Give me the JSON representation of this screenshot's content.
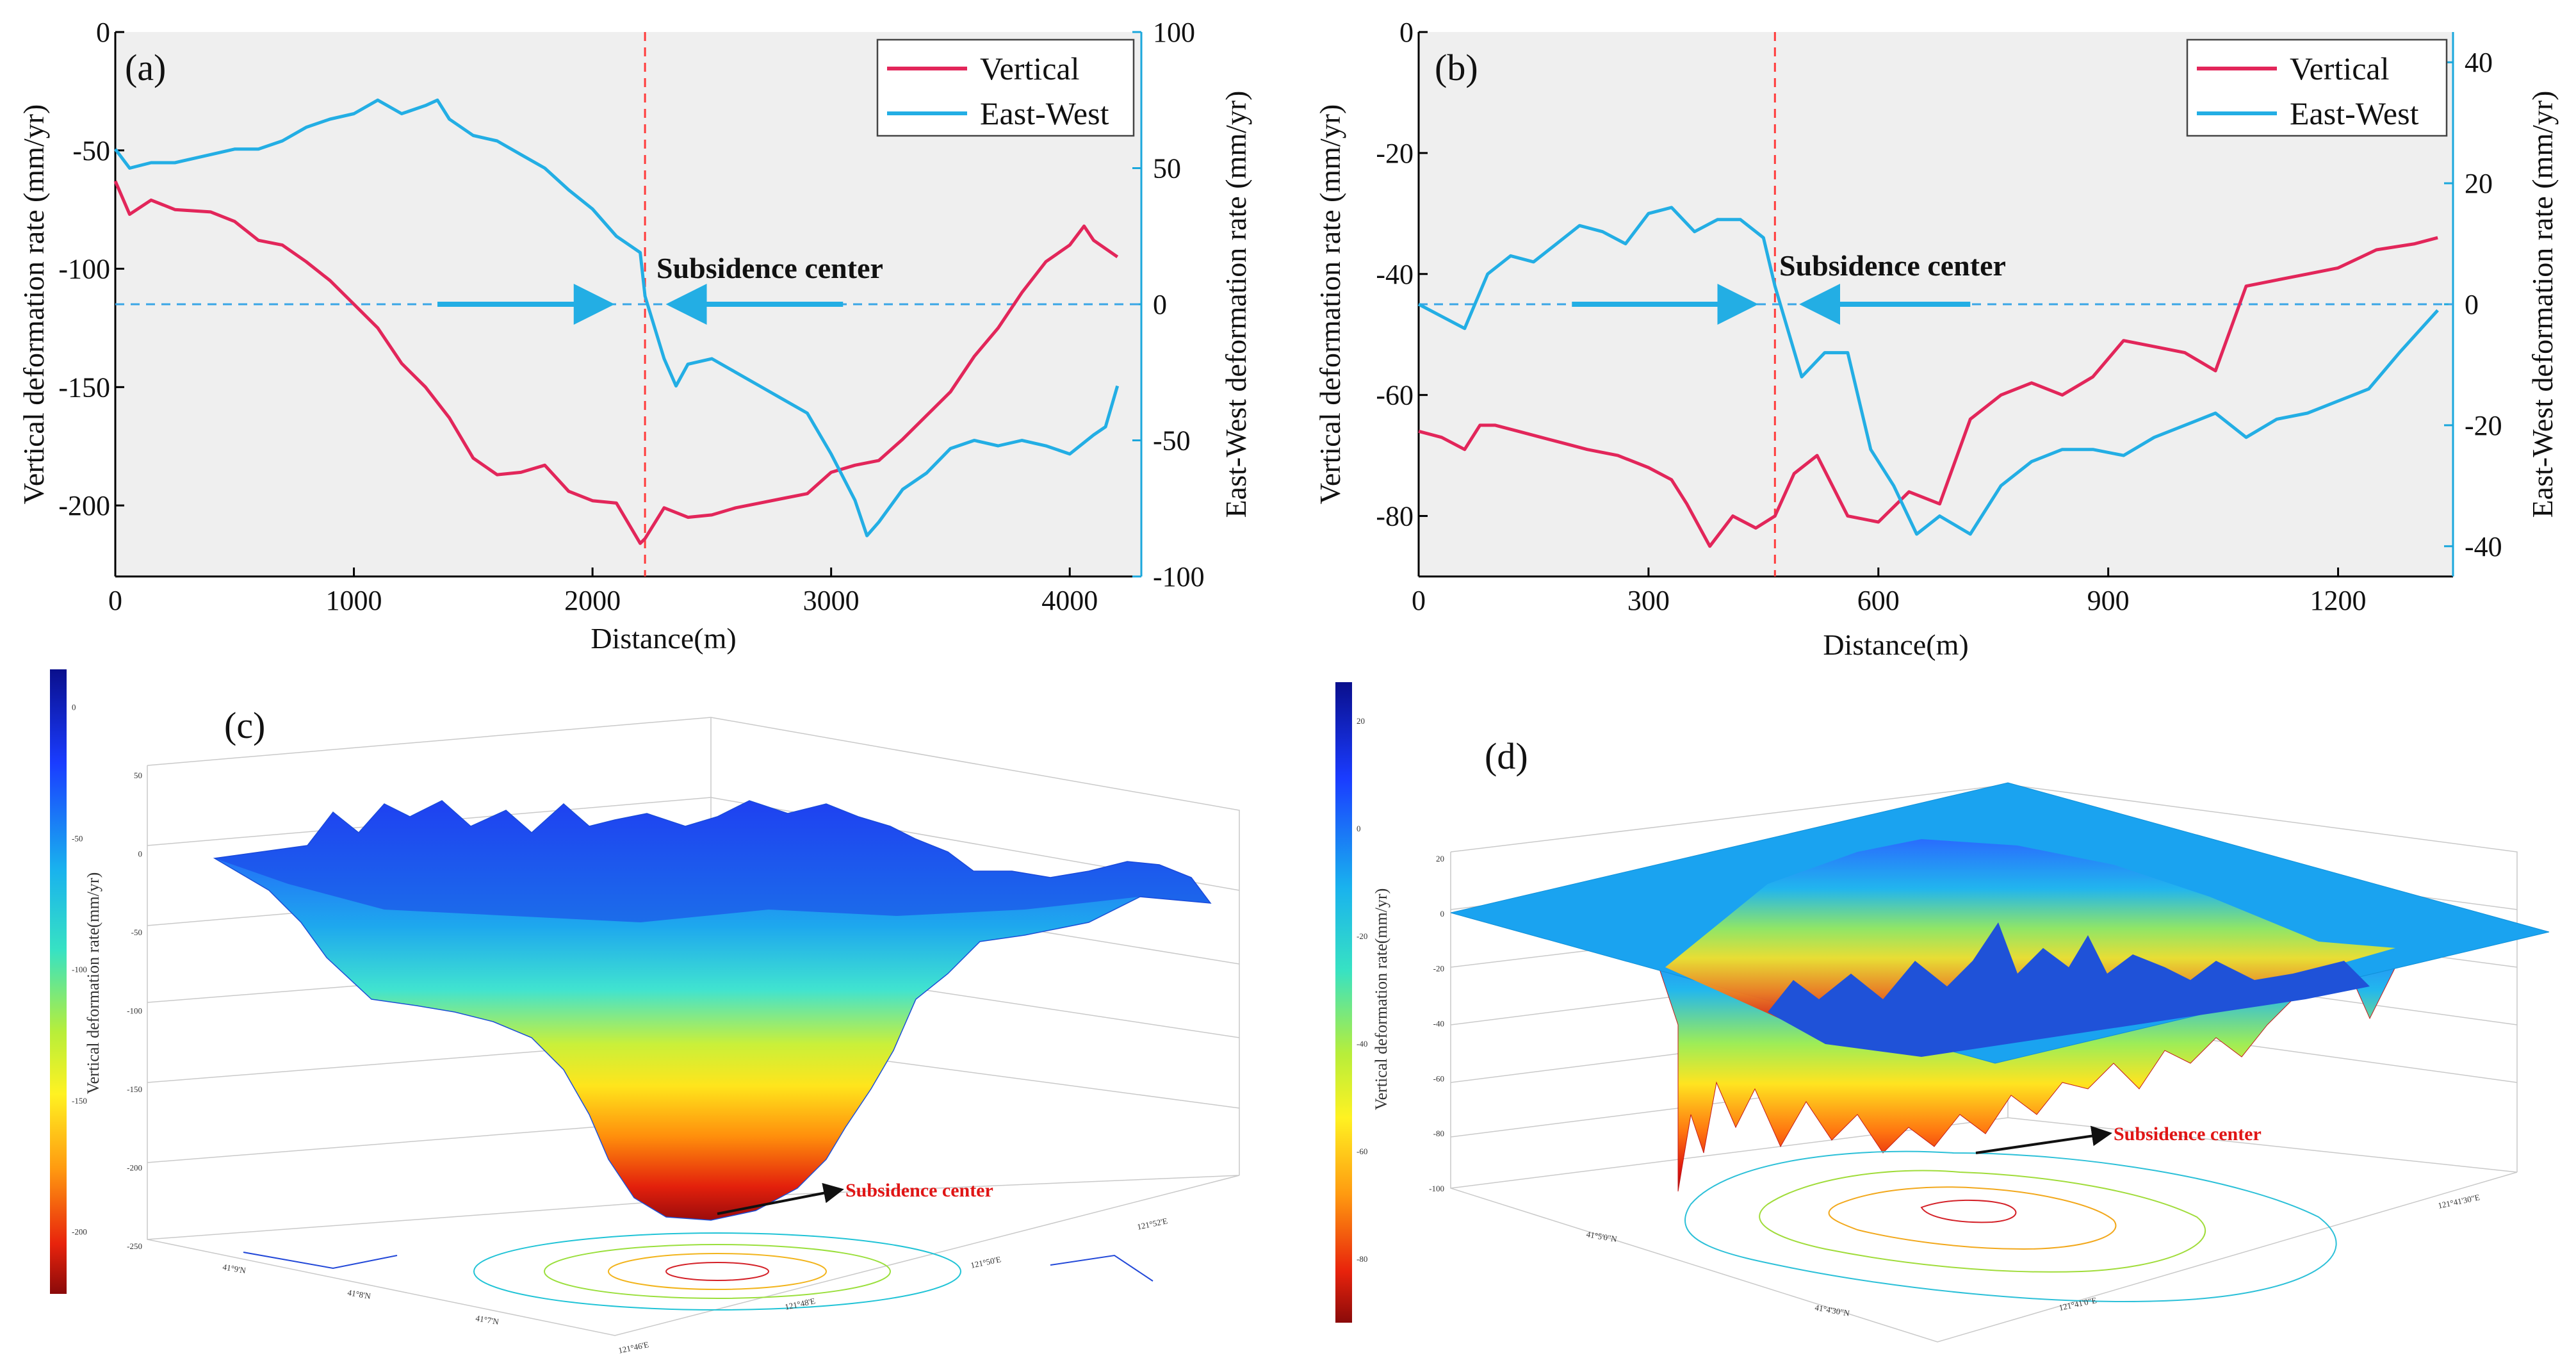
{
  "chart_data": [
    {
      "panel": "(a)",
      "type": "line",
      "xlabel": "Distance(m)",
      "ylabel_left": "Vertical deformation rate (mm/yr)",
      "ylabel_right": "East-West deformation rate (mm/yr)",
      "xlim": [
        0,
        4300
      ],
      "ylim_left": [
        -230,
        0
      ],
      "ylim_right": [
        -100,
        100
      ],
      "xticks": [
        0,
        1000,
        2000,
        3000,
        4000
      ],
      "yticks_left": [
        0,
        -50,
        -100,
        -150,
        -200
      ],
      "yticks_right": [
        100,
        50,
        0,
        -50,
        -100
      ],
      "annotation": "Subsidence center",
      "center_x": 2220,
      "zero_line_right": 0,
      "arrow_left": [
        1350,
        2050
      ],
      "arrow_right": [
        3050,
        2350
      ],
      "legend": [
        "Vertical",
        "East-West"
      ],
      "series": [
        {
          "name": "Vertical",
          "axis": "left",
          "color": "#e2265a",
          "x": [
            0,
            60,
            150,
            250,
            400,
            500,
            600,
            700,
            800,
            900,
            1000,
            1100,
            1200,
            1300,
            1400,
            1500,
            1600,
            1700,
            1800,
            1900,
            2000,
            2100,
            2200,
            2220,
            2300,
            2400,
            2500,
            2600,
            2700,
            2800,
            2900,
            3000,
            3100,
            3200,
            3300,
            3400,
            3500,
            3600,
            3700,
            3800,
            3900,
            4000,
            4060,
            4100,
            4200
          ],
          "values": [
            -63,
            -77,
            -71,
            -75,
            -76,
            -80,
            -88,
            -90,
            -97,
            -105,
            -115,
            -125,
            -140,
            -150,
            -163,
            -180,
            -187,
            -186,
            -183,
            -194,
            -198,
            -199,
            -216,
            -214,
            -201,
            -205,
            -204,
            -201,
            -199,
            -197,
            -195,
            -186,
            -183,
            -181,
            -172,
            -162,
            -152,
            -137,
            -125,
            -110,
            -97,
            -90,
            -82,
            -88,
            -95
          ]
        },
        {
          "name": "East-West",
          "axis": "right",
          "color": "#23aee4",
          "x": [
            0,
            60,
            150,
            250,
            400,
            500,
            600,
            700,
            800,
            900,
            1000,
            1100,
            1200,
            1300,
            1350,
            1400,
            1500,
            1600,
            1700,
            1800,
            1900,
            2000,
            2100,
            2200,
            2220,
            2300,
            2350,
            2400,
            2500,
            2600,
            2700,
            2800,
            2900,
            3000,
            3100,
            3150,
            3200,
            3300,
            3400,
            3500,
            3600,
            3700,
            3800,
            3900,
            4000,
            4100,
            4150,
            4200
          ],
          "values": [
            57,
            50,
            52,
            52,
            55,
            57,
            57,
            60,
            65,
            68,
            70,
            75,
            70,
            73,
            75,
            68,
            62,
            60,
            55,
            50,
            42,
            35,
            25,
            19,
            3,
            -20,
            -30,
            -22,
            -20,
            -25,
            -30,
            -35,
            -40,
            -55,
            -72,
            -85,
            -80,
            -68,
            -62,
            -53,
            -50,
            -52,
            -50,
            -52,
            -55,
            -48,
            -45,
            -30
          ]
        }
      ]
    },
    {
      "panel": "(b)",
      "type": "line",
      "xlabel": "Distance(m)",
      "ylabel_left": "Vertical deformation rate (mm/yr)",
      "ylabel_right": "East-West deformation rate (mm/yr)",
      "xlim": [
        0,
        1350
      ],
      "ylim_left": [
        -90,
        0
      ],
      "ylim_right": [
        -45,
        45
      ],
      "xticks": [
        0,
        300,
        600,
        900,
        1200
      ],
      "yticks_left": [
        0,
        -20,
        -40,
        -60,
        -80
      ],
      "yticks_right": [
        40,
        20,
        0,
        -20,
        -40
      ],
      "annotation": "Subsidence center",
      "center_x": 465,
      "zero_line_right": 0,
      "arrow_left": [
        200,
        430
      ],
      "arrow_right": [
        720,
        510
      ],
      "legend": [
        "Vertical",
        "East-West"
      ],
      "series": [
        {
          "name": "Vertical",
          "axis": "left",
          "color": "#e2265a",
          "x": [
            0,
            30,
            60,
            80,
            100,
            130,
            160,
            190,
            220,
            260,
            300,
            330,
            350,
            380,
            410,
            440,
            465,
            490,
            520,
            560,
            600,
            640,
            680,
            720,
            760,
            800,
            840,
            880,
            920,
            960,
            1000,
            1040,
            1080,
            1120,
            1160,
            1200,
            1250,
            1300,
            1330
          ],
          "values": [
            -66,
            -67,
            -69,
            -65,
            -65,
            -66,
            -67,
            -68,
            -69,
            -70,
            -72,
            -74,
            -78,
            -85,
            -80,
            -82,
            -80,
            -73,
            -70,
            -80,
            -81,
            -76,
            -78,
            -64,
            -60,
            -58,
            -60,
            -57,
            -51,
            -52,
            -53,
            -56,
            -42,
            -41,
            -40,
            -39,
            -36,
            -35,
            -34
          ]
        },
        {
          "name": "East-West",
          "axis": "right",
          "color": "#23aee4",
          "x": [
            0,
            30,
            60,
            90,
            120,
            150,
            180,
            210,
            240,
            270,
            300,
            330,
            360,
            390,
            420,
            450,
            465,
            500,
            530,
            560,
            590,
            620,
            650,
            680,
            720,
            760,
            800,
            840,
            880,
            920,
            960,
            1000,
            1040,
            1080,
            1120,
            1160,
            1200,
            1240,
            1280,
            1330
          ],
          "values": [
            0,
            -2,
            -4,
            5,
            8,
            7,
            10,
            13,
            12,
            10,
            15,
            16,
            12,
            14,
            14,
            11,
            3,
            -12,
            -8,
            -8,
            -24,
            -30,
            -38,
            -35,
            -38,
            -30,
            -26,
            -24,
            -24,
            -25,
            -22,
            -20,
            -18,
            -22,
            -19,
            -18,
            -16,
            -14,
            -8,
            -1
          ]
        }
      ]
    },
    {
      "panel": "(c)",
      "type": "surface3d",
      "colorbar_label": "Vertical deformation rate(mm/yr)",
      "colorbar_ticks": [
        0,
        -50,
        -100,
        -150,
        -200
      ],
      "z_ticks": [
        50,
        0,
        -50,
        -100,
        -150,
        -200,
        -250
      ],
      "x_ticks": [
        "121°46'E",
        "121°48'E",
        "121°50'E",
        "121°52'E"
      ],
      "y_ticks": [
        "41°9'N",
        "41°8'N",
        "41°7'N"
      ],
      "annotation": "Subsidence center"
    },
    {
      "panel": "(d)",
      "type": "surface3d",
      "colorbar_label": "Vertical deformation rate(mm/yr)",
      "colorbar_ticks": [
        20,
        0,
        -20,
        -40,
        -60,
        -80
      ],
      "z_ticks": [
        20,
        0,
        -20,
        -40,
        -60,
        -80,
        -100
      ],
      "x_ticks": [
        "121°41'0\"E",
        "121°41'30\"E"
      ],
      "y_ticks": [
        "41°5'0\"N",
        "41°4'30\"N"
      ],
      "annotation": "Subsidence center"
    }
  ]
}
